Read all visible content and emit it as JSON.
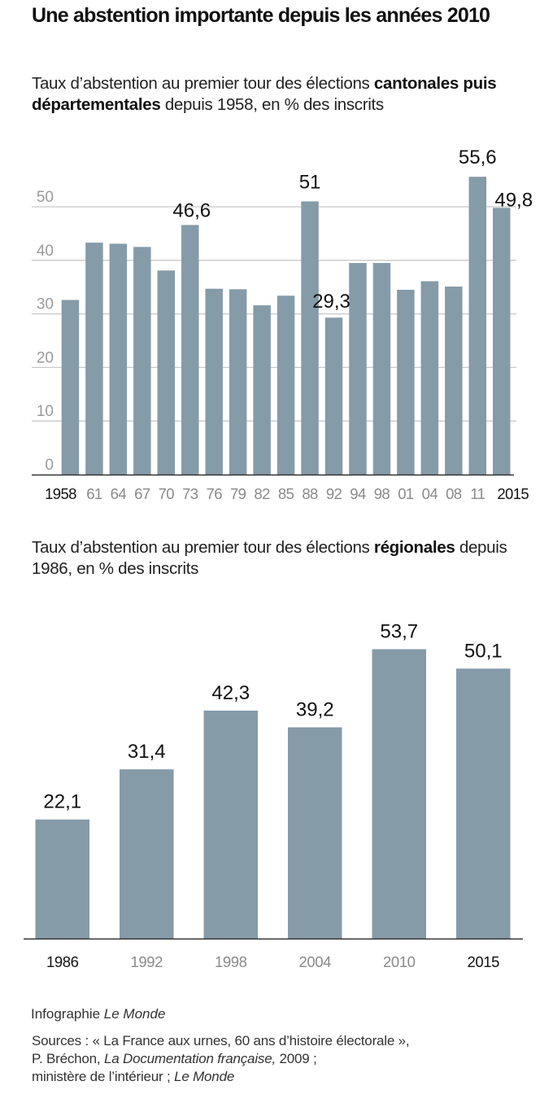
{
  "header": {
    "title": "Une abstention importante depuis les années 2010"
  },
  "colors": {
    "bar": "#859ba8",
    "grid": "#c8c8c8",
    "axis": "#333333",
    "tick_muted": "#8a8a8a",
    "tick_strong": "#111111",
    "label": "#111111"
  },
  "chart_data": [
    {
      "type": "bar",
      "subtitle": {
        "prefix": "Taux d’abstention au premier tour des élections ",
        "bold": "cantonales puis départementales",
        "suffix": " depuis 1958, en % des inscrits"
      },
      "categories": [
        "1958",
        "61",
        "64",
        "67",
        "70",
        "73",
        "76",
        "79",
        "82",
        "85",
        "88",
        "92",
        "94",
        "98",
        "01",
        "04",
        "08",
        "11",
        "2015"
      ],
      "strong_categories": [
        "1958",
        "2015"
      ],
      "values": [
        32.6,
        43.3,
        43.1,
        42.5,
        38.1,
        46.6,
        34.7,
        34.6,
        31.6,
        33.4,
        51,
        29.3,
        39.5,
        39.5,
        34.5,
        36.1,
        35.1,
        55.6,
        49.8
      ],
      "data_labels": [
        {
          "index": 5,
          "text": "46,6",
          "placement": "above"
        },
        {
          "index": 10,
          "text": "51",
          "placement": "above"
        },
        {
          "index": 11,
          "text": "29,3",
          "placement": "above"
        },
        {
          "index": 17,
          "text": "55,6",
          "placement": "above"
        },
        {
          "index": 18,
          "text": "49,8",
          "placement": "above"
        }
      ],
      "yticks": [
        0,
        10,
        20,
        30,
        40,
        50
      ],
      "ylim": [
        0,
        56
      ],
      "grid": true,
      "xlabel": "",
      "ylabel": ""
    },
    {
      "type": "bar",
      "subtitle": {
        "prefix": "Taux d’abstention au premier tour des élections ",
        "bold": "régionales",
        "suffix": " depuis 1986, en % des inscrits"
      },
      "categories": [
        "1986",
        "1992",
        "1998",
        "2004",
        "2010",
        "2015"
      ],
      "strong_categories": [
        "1986",
        "2015"
      ],
      "values": [
        22.1,
        31.4,
        42.3,
        39.2,
        53.7,
        50.1
      ],
      "data_labels": [
        {
          "index": 0,
          "text": "22,1",
          "placement": "above"
        },
        {
          "index": 1,
          "text": "31,4",
          "placement": "above"
        },
        {
          "index": 2,
          "text": "42,3",
          "placement": "above"
        },
        {
          "index": 3,
          "text": "39,2",
          "placement": "above"
        },
        {
          "index": 4,
          "text": "53,7",
          "placement": "above"
        },
        {
          "index": 5,
          "text": "50,1",
          "placement": "above"
        }
      ],
      "yticks": [],
      "ylim": [
        0,
        56
      ],
      "grid": false,
      "xlabel": "",
      "ylabel": ""
    }
  ],
  "footer": {
    "credit_prefix": "Infographie ",
    "credit_italic": "Le Monde",
    "sources_line1": "Sources : « La France aux urnes, 60 ans d’histoire électorale »,",
    "sources_line2_prefix": "P. Bréchon, ",
    "sources_line2_italic": "La Documentation française,",
    "sources_line2_suffix": " 2009 ;",
    "sources_line3_prefix": "ministère de l’intérieur ; ",
    "sources_line3_italic": "Le Monde"
  }
}
